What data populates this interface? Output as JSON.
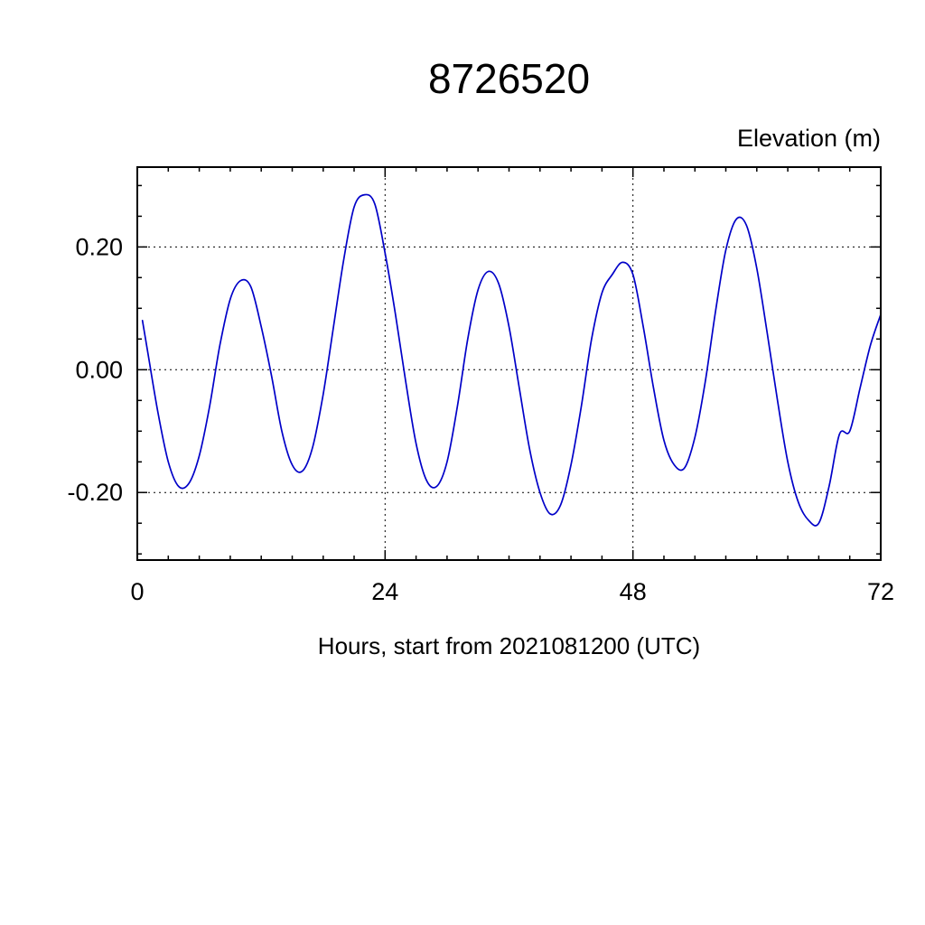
{
  "chart_data": {
    "type": "line",
    "title": "8726520",
    "ylabel": "Elevation (m)",
    "xlabel": "Hours, start from 2021081200 (UTC)",
    "line_color": "#0000c8",
    "legend": "none",
    "grid": "dashed at major ticks",
    "xlim": [
      0,
      72
    ],
    "ylim": [
      -0.31,
      0.33
    ],
    "x_major_ticks": [
      0,
      24,
      48,
      72
    ],
    "x_tick_labels": [
      "0",
      "24",
      "48",
      "72"
    ],
    "x_minor_step": 3,
    "y_major_ticks": [
      0.2,
      0.0,
      -0.2
    ],
    "y_tick_labels": [
      "0.20",
      "0.00",
      "-0.20"
    ],
    "y_minor_step": 0.05,
    "grid_x": [
      24,
      48
    ],
    "grid_y": [
      0.2,
      0.0,
      -0.2
    ],
    "x": [
      0.5,
      1,
      2,
      3,
      4,
      5,
      6,
      7,
      8,
      9,
      10,
      11,
      12,
      13,
      14,
      15,
      16,
      17,
      18,
      19,
      20,
      21,
      22,
      23,
      24,
      25,
      26,
      27,
      28,
      29,
      30,
      31,
      32,
      33,
      34,
      35,
      36,
      37,
      38,
      39,
      40,
      41,
      42,
      43,
      44,
      45,
      46,
      47,
      48,
      49,
      50,
      51,
      52,
      53,
      54,
      55,
      56,
      57,
      58,
      59,
      60,
      61,
      62,
      63,
      64,
      65,
      66,
      67,
      68,
      69,
      70,
      71,
      72
    ],
    "y": [
      0.08,
      0.03,
      -0.07,
      -0.15,
      -0.19,
      -0.185,
      -0.14,
      -0.06,
      0.04,
      0.115,
      0.145,
      0.135,
      0.07,
      -0.01,
      -0.1,
      -0.155,
      -0.165,
      -0.125,
      -0.04,
      0.07,
      0.18,
      0.265,
      0.285,
      0.27,
      0.19,
      0.09,
      -0.02,
      -0.12,
      -0.18,
      -0.19,
      -0.15,
      -0.06,
      0.05,
      0.13,
      0.16,
      0.14,
      0.07,
      -0.03,
      -0.13,
      -0.2,
      -0.235,
      -0.22,
      -0.155,
      -0.06,
      0.05,
      0.125,
      0.155,
      0.175,
      0.155,
      0.07,
      -0.03,
      -0.115,
      -0.155,
      -0.16,
      -0.11,
      -0.02,
      0.095,
      0.195,
      0.245,
      0.235,
      0.165,
      0.06,
      -0.05,
      -0.15,
      -0.215,
      -0.245,
      -0.25,
      -0.19,
      -0.105,
      -0.1,
      -0.03,
      0.04,
      0.09
    ]
  }
}
